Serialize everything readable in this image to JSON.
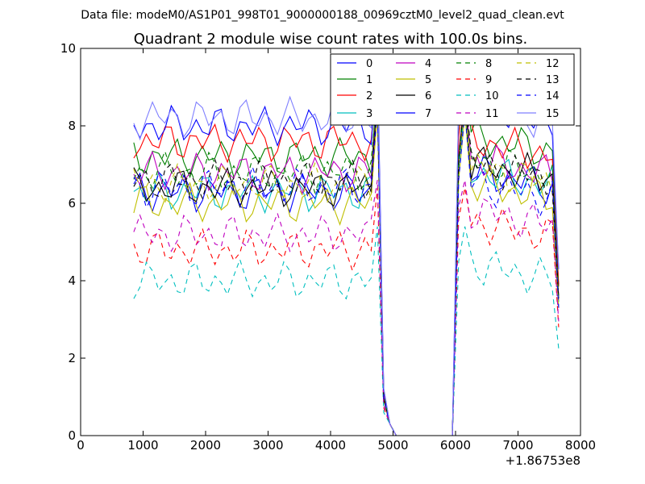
{
  "figure": {
    "suptitle": "Data file: modeM0/AS1P01_998T01_9000000188_00969cztM0_level2_quad_clean.evt"
  },
  "chart_data": {
    "type": "line",
    "title": "Quadrant 2 module wise count rates with 100.0s bins.",
    "xlabel": "",
    "ylabel": "",
    "xlim": [
      0,
      8000
    ],
    "ylim": [
      0,
      10
    ],
    "x_ticks": [
      "0",
      "1000",
      "2000",
      "3000",
      "4000",
      "5000",
      "6000",
      "7000",
      "8000"
    ],
    "y_ticks": [
      "0",
      "2",
      "4",
      "6",
      "8",
      "10"
    ],
    "x_offset_label": "+1.86753e8",
    "grid": false,
    "legend_position": "top-right",
    "legend_columns": 4,
    "x": [
      850,
      950,
      1050,
      1150,
      1250,
      1350,
      1450,
      1550,
      1650,
      1750,
      1850,
      1950,
      2050,
      2150,
      2250,
      2350,
      2450,
      2550,
      2650,
      2750,
      2850,
      2950,
      3050,
      3150,
      3250,
      3350,
      3450,
      3550,
      3650,
      3750,
      3850,
      3950,
      4050,
      4150,
      4250,
      4350,
      4450,
      4550,
      4650,
      4750,
      4850,
      4950,
      5050,
      5150,
      5250,
      5350,
      5450,
      5550,
      5650,
      5750,
      5850,
      5950,
      6050,
      6150,
      6250,
      6350,
      6450,
      6550,
      6650,
      6750,
      6850,
      6950,
      7050,
      7150,
      7250,
      7350,
      7450,
      7550,
      7650
    ],
    "gap_start": 4850,
    "gap_end": 6000,
    "series": [
      {
        "name": "0",
        "color": "#0000ff",
        "dash": "solid",
        "level_before": 6.3,
        "level_after": 6.9,
        "peak": 8.6
      },
      {
        "name": "1",
        "color": "#008000",
        "dash": "solid",
        "level_before": 7.2,
        "level_after": 7.8,
        "peak": 9.3
      },
      {
        "name": "2",
        "color": "#ff0000",
        "dash": "solid",
        "level_before": 7.6,
        "level_after": 7.7,
        "peak": 9.4
      },
      {
        "name": "3",
        "color": "#00bfbf",
        "dash": "solid",
        "level_before": 6.3,
        "level_after": 6.9,
        "peak": 8.6
      },
      {
        "name": "4",
        "color": "#bf00bf",
        "dash": "solid",
        "level_before": 6.8,
        "level_after": 7.2,
        "peak": 8.9
      },
      {
        "name": "5",
        "color": "#bfbf00",
        "dash": "solid",
        "level_before": 6.0,
        "level_after": 6.6,
        "peak": 8.3
      },
      {
        "name": "6",
        "color": "#000000",
        "dash": "solid",
        "level_before": 6.4,
        "level_after": 7.1,
        "peak": 8.8
      },
      {
        "name": "7",
        "color": "#0000ff",
        "dash": "solid",
        "level_before": 8.0,
        "level_after": 8.6,
        "peak": 9.8
      },
      {
        "name": "8",
        "color": "#008000",
        "dash": "dashed",
        "level_before": 6.8,
        "level_after": 7.2,
        "peak": 8.9
      },
      {
        "name": "9",
        "color": "#ff0000",
        "dash": "dashed",
        "level_before": 4.8,
        "level_after": 5.6,
        "peak": 6.4
      },
      {
        "name": "10",
        "color": "#00bfbf",
        "dash": "dashed",
        "level_before": 4.0,
        "level_after": 4.5,
        "peak": 5.4
      },
      {
        "name": "11",
        "color": "#bf00bf",
        "dash": "dashed",
        "level_before": 5.2,
        "level_after": 5.9,
        "peak": 6.6
      },
      {
        "name": "12",
        "color": "#bfbf00",
        "dash": "dashed",
        "level_before": 6.5,
        "level_after": 7.0,
        "peak": 8.6
      },
      {
        "name": "13",
        "color": "#000000",
        "dash": "dashed",
        "level_before": 6.6,
        "level_after": 7.1,
        "peak": 8.8
      },
      {
        "name": "14",
        "color": "#0000ff",
        "dash": "dashed",
        "level_before": 6.4,
        "level_after": 6.6,
        "peak": 8.4
      },
      {
        "name": "15",
        "color": "#7f7fff",
        "dash": "solid",
        "level_before": 8.2,
        "level_after": 8.6,
        "peak": 9.4
      }
    ]
  }
}
